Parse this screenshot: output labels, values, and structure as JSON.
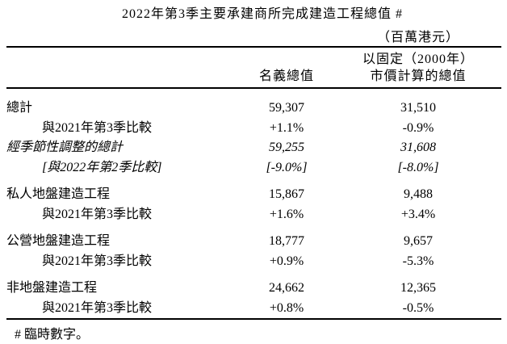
{
  "title": "2022年第3季主要承建商所完成建造工程總值 #",
  "unit_note": "（百萬港元）",
  "columns": {
    "nominal": "名義總值",
    "fixed_line1": "以固定（2000年）",
    "fixed_line2": "市價計算的總值"
  },
  "rows": [
    {
      "label": "總計",
      "nominal": "59,307",
      "fixed": "31,510"
    },
    {
      "label": "與2021年第3季比較",
      "nominal": "+1.1%",
      "fixed": "-0.9%"
    },
    {
      "label": "經季節性調整的總計",
      "nominal": "59,255",
      "fixed": "31,608"
    },
    {
      "label": "[與2022年第2季比較]",
      "nominal": "[-9.0%]",
      "fixed": "[-8.0%]"
    },
    {
      "label": "私人地盤建造工程",
      "nominal": "15,867",
      "fixed": "9,488"
    },
    {
      "label": "與2021年第3季比較",
      "nominal": "+1.6%",
      "fixed": "+3.4%"
    },
    {
      "label": "公營地盤建造工程",
      "nominal": "18,777",
      "fixed": "9,657"
    },
    {
      "label": "與2021年第3季比較",
      "nominal": "+0.9%",
      "fixed": "-5.3%"
    },
    {
      "label": "非地盤建造工程",
      "nominal": "24,662",
      "fixed": "12,365"
    },
    {
      "label": "與2021年第3季比較",
      "nominal": "+0.8%",
      "fixed": "-0.5%"
    }
  ],
  "footnote": "# 臨時數字。"
}
